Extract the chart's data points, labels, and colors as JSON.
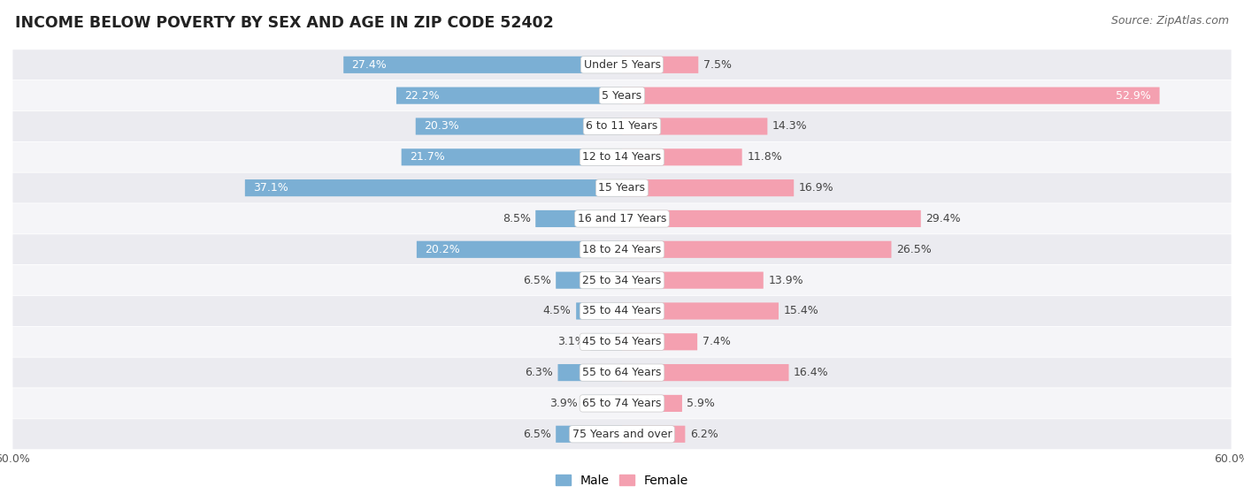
{
  "title": "INCOME BELOW POVERTY BY SEX AND AGE IN ZIP CODE 52402",
  "source": "Source: ZipAtlas.com",
  "categories": [
    "Under 5 Years",
    "5 Years",
    "6 to 11 Years",
    "12 to 14 Years",
    "15 Years",
    "16 and 17 Years",
    "18 to 24 Years",
    "25 to 34 Years",
    "35 to 44 Years",
    "45 to 54 Years",
    "55 to 64 Years",
    "65 to 74 Years",
    "75 Years and over"
  ],
  "male_values": [
    27.4,
    22.2,
    20.3,
    21.7,
    37.1,
    8.5,
    20.2,
    6.5,
    4.5,
    3.1,
    6.3,
    3.9,
    6.5
  ],
  "female_values": [
    7.5,
    52.9,
    14.3,
    11.8,
    16.9,
    29.4,
    26.5,
    13.9,
    15.4,
    7.4,
    16.4,
    5.9,
    6.2
  ],
  "male_color": "#7bafd4",
  "female_color": "#f4a0b0",
  "male_label": "Male",
  "female_label": "Female",
  "axis_limit": 60.0,
  "row_bg_even": "#ebebf0",
  "row_bg_odd": "#f5f5f8",
  "bar_height": 0.52,
  "label_fontsize": 9.0,
  "title_fontsize": 12.5,
  "source_fontsize": 9,
  "axis_label_fontsize": 9,
  "legend_fontsize": 10
}
